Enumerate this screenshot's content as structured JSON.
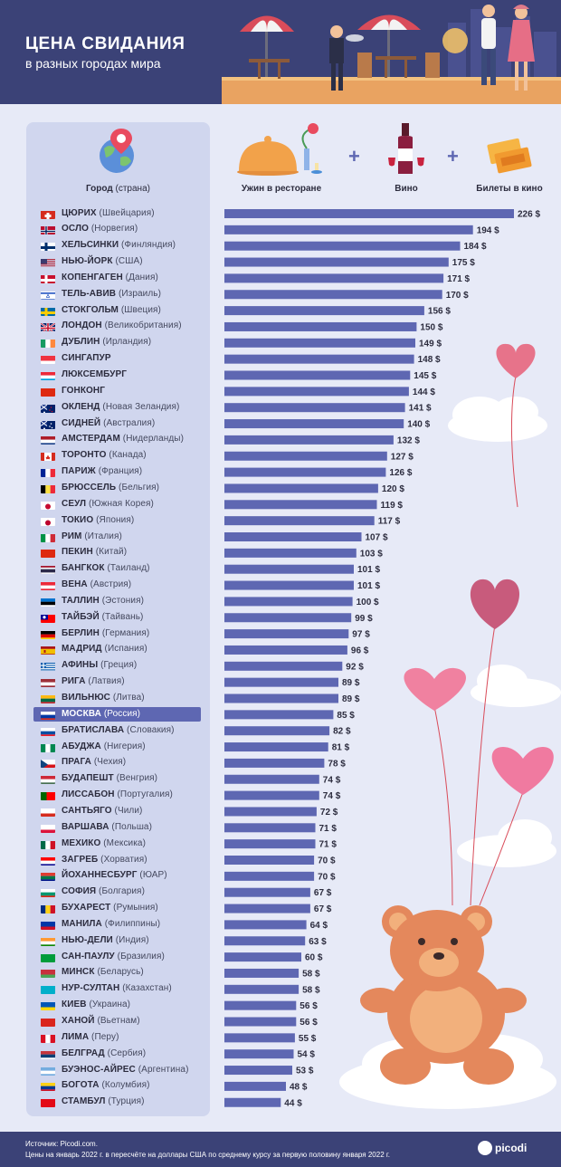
{
  "header": {
    "title": "ЦЕНА СВИДАНИЯ",
    "subtitle": "в разных городах мира"
  },
  "columns": {
    "city_label": "Город",
    "country_label": "(страна)",
    "icon_dinner": "Ужин в ресторане",
    "icon_wine": "Вино",
    "icon_cinema": "Билеты в кино",
    "plus": "+"
  },
  "footer": {
    "source": "Источник: Picodi.com.",
    "note": "Цены на январь 2022 г. в пересчёте на доллары США по среднему курсу за первую половину января 2022 г.",
    "logo": "picodi"
  },
  "colors": {
    "bar": "#5e67b2",
    "header_bg": "#3b4277",
    "highlight": "#5e67b2"
  },
  "chart_data": {
    "type": "bar",
    "orientation": "horizontal",
    "unit": "$",
    "highlighted": "МОСКВА",
    "categories": [
      "ЦЮРИХ",
      "ОСЛО",
      "ХЕЛЬСИНКИ",
      "НЬЮ-ЙОРК",
      "КОПЕНГАГЕН",
      "ТЕЛЬ-АВИВ",
      "СТОКГОЛЬМ",
      "ЛОНДОН",
      "ДУБЛИН",
      "СИНГАПУР",
      "ЛЮКСЕМБУРГ",
      "ГОНКОНГ",
      "ОКЛЕНД",
      "СИДНЕЙ",
      "АМСТЕРДАМ",
      "ТОРОНТО",
      "ПАРИЖ",
      "БРЮССЕЛЬ",
      "СЕУЛ",
      "ТОКИО",
      "РИМ",
      "ПЕКИН",
      "БАНГКОК",
      "ВЕНА",
      "ТАЛЛИН",
      "ТАЙБЭЙ",
      "БЕРЛИН",
      "МАДРИД",
      "АФИНЫ",
      "РИГА",
      "ВИЛЬНЮС",
      "МОСКВА",
      "БРАТИСЛАВА",
      "АБУДЖА",
      "ПРАГА",
      "БУДАПЕШТ",
      "ЛИССАБОН",
      "САНТЬЯГО",
      "ВАРШАВА",
      "МЕХИКО",
      "ЗАГРЕБ",
      "ЙОХАННЕСБУРГ",
      "СОФИЯ",
      "БУХАРЕСТ",
      "МАНИЛА",
      "НЬЮ-ДЕЛИ",
      "САН-ПАУЛУ",
      "МИНСК",
      "НУР-СУЛТАН",
      "КИЕВ",
      "ХАНОЙ",
      "ЛИМА",
      "БЕЛГРАД",
      "БУЭНОС-АЙРЕС",
      "БОГОТА",
      "СТАМБУЛ"
    ],
    "countries": [
      "(Швейцария)",
      "(Норвегия)",
      "(Финляндия)",
      "(США)",
      "(Дания)",
      "(Израиль)",
      "(Швеция)",
      "(Великобритания)",
      "(Ирландия)",
      "",
      "",
      "",
      "(Новая Зеландия)",
      "(Австралия)",
      "(Нидерланды)",
      "(Канада)",
      "(Франция)",
      "(Бельгия)",
      "(Южная Корея)",
      "(Япония)",
      "(Италия)",
      "(Китай)",
      "(Таиланд)",
      "(Австрия)",
      "(Эстония)",
      "(Тайвань)",
      "(Германия)",
      "(Испания)",
      "(Греция)",
      "(Латвия)",
      "(Литва)",
      "(Россия)",
      "(Словакия)",
      "(Нигерия)",
      "(Чехия)",
      "(Венгрия)",
      "(Португалия)",
      "(Чили)",
      "(Польша)",
      "(Мексика)",
      "(Хорватия)",
      "(ЮАР)",
      "(Болгария)",
      "(Румыния)",
      "(Филиппины)",
      "(Индия)",
      "(Бразилия)",
      "(Беларусь)",
      "(Казахстан)",
      "(Украина)",
      "(Вьетнам)",
      "(Перу)",
      "(Сербия)",
      "(Аргентина)",
      "(Колумбия)",
      "(Турция)"
    ],
    "values": [
      226,
      194,
      184,
      175,
      171,
      170,
      156,
      150,
      149,
      148,
      145,
      144,
      141,
      140,
      132,
      127,
      126,
      120,
      119,
      117,
      107,
      103,
      101,
      101,
      100,
      99,
      97,
      96,
      92,
      89,
      89,
      85,
      82,
      81,
      78,
      74,
      74,
      72,
      71,
      71,
      70,
      70,
      67,
      67,
      64,
      63,
      60,
      58,
      58,
      56,
      56,
      55,
      54,
      53,
      48,
      44
    ],
    "value_labels": [
      "226 $",
      "194 $",
      "184 $",
      "175 $",
      "171 $",
      "170 $",
      "156 $",
      "150 $",
      "149 $",
      "148 $",
      "145 $",
      "144 $",
      "141 $",
      "140 $",
      "132 $",
      "127 $",
      "126 $",
      "120 $",
      "119 $",
      "117 $",
      "107 $",
      "103 $",
      "101 $",
      "101 $",
      "100 $",
      "99 $",
      "97 $",
      "96 $",
      "92 $",
      "89 $",
      "89 $",
      "85 $",
      "82 $",
      "81 $",
      "78 $",
      "74 $",
      "74 $",
      "72 $",
      "71 $",
      "71 $",
      "70 $",
      "70 $",
      "67 $",
      "67 $",
      "64 $",
      "63 $",
      "60 $",
      "58 $",
      "58 $",
      "56 $",
      "56 $",
      "55 $",
      "54 $",
      "53 $",
      "48 $",
      "44 $"
    ],
    "flags": [
      {
        "type": "cross",
        "bg": "#d52b1e",
        "fg": "#ffffff"
      },
      {
        "type": "nordic",
        "bg": "#ba0c2f",
        "fg": "#ffffff",
        "inner": "#00205b"
      },
      {
        "type": "nordic",
        "bg": "#ffffff",
        "fg": "#002f6c"
      },
      {
        "type": "usa"
      },
      {
        "type": "nordic",
        "bg": "#c8102e",
        "fg": "#ffffff"
      },
      {
        "type": "israel"
      },
      {
        "type": "nordic",
        "bg": "#006aa7",
        "fg": "#fecc00"
      },
      {
        "type": "uk"
      },
      {
        "type": "v3",
        "c": [
          "#169b62",
          "#ffffff",
          "#ff883e"
        ]
      },
      {
        "type": "h2",
        "c": [
          "#ef3340",
          "#ffffff"
        ]
      },
      {
        "type": "h3",
        "c": [
          "#ed2939",
          "#ffffff",
          "#00a1de"
        ]
      },
      {
        "type": "solid",
        "c": [
          "#de2910"
        ]
      },
      {
        "type": "oz",
        "c": [
          "#012169",
          "#c8102e"
        ]
      },
      {
        "type": "oz",
        "c": [
          "#012169",
          "#ffffff"
        ]
      },
      {
        "type": "h3",
        "c": [
          "#ae1c28",
          "#ffffff",
          "#21468b"
        ]
      },
      {
        "type": "canada"
      },
      {
        "type": "v3",
        "c": [
          "#002395",
          "#ffffff",
          "#ed2939"
        ]
      },
      {
        "type": "v3",
        "c": [
          "#000000",
          "#fae042",
          "#ed2939"
        ]
      },
      {
        "type": "dot",
        "c": [
          "#ffffff",
          "#c60c30"
        ]
      },
      {
        "type": "dot",
        "c": [
          "#ffffff",
          "#bc002d"
        ]
      },
      {
        "type": "v3",
        "c": [
          "#009246",
          "#ffffff",
          "#ce2b37"
        ]
      },
      {
        "type": "solid",
        "c": [
          "#de2910"
        ]
      },
      {
        "type": "thai"
      },
      {
        "type": "h3",
        "c": [
          "#ed2939",
          "#ffffff",
          "#ed2939"
        ]
      },
      {
        "type": "h3",
        "c": [
          "#0072ce",
          "#000000",
          "#ffffff"
        ]
      },
      {
        "type": "taiwan"
      },
      {
        "type": "h3",
        "c": [
          "#000000",
          "#dd0000",
          "#ffce00"
        ]
      },
      {
        "type": "spain"
      },
      {
        "type": "stripes",
        "c": [
          "#0d5eaf",
          "#ffffff"
        ]
      },
      {
        "type": "h3",
        "c": [
          "#9e3039",
          "#ffffff",
          "#9e3039"
        ]
      },
      {
        "type": "h3",
        "c": [
          "#fdb913",
          "#006a44",
          "#c1272d"
        ]
      },
      {
        "type": "h3",
        "c": [
          "#ffffff",
          "#0039a6",
          "#d52b1e"
        ]
      },
      {
        "type": "h3",
        "c": [
          "#ffffff",
          "#0b4ea2",
          "#ee1c25"
        ]
      },
      {
        "type": "v3",
        "c": [
          "#008751",
          "#ffffff",
          "#008751"
        ]
      },
      {
        "type": "czech"
      },
      {
        "type": "h3",
        "c": [
          "#ce2939",
          "#ffffff",
          "#477050"
        ]
      },
      {
        "type": "v2",
        "c": [
          "#006600",
          "#ff0000"
        ]
      },
      {
        "type": "h2",
        "c": [
          "#ffffff",
          "#d52b1e"
        ]
      },
      {
        "type": "h2",
        "c": [
          "#ffffff",
          "#dc143c"
        ]
      },
      {
        "type": "v3",
        "c": [
          "#006847",
          "#ffffff",
          "#ce1126"
        ]
      },
      {
        "type": "h3",
        "c": [
          "#ff0000",
          "#ffffff",
          "#171796"
        ]
      },
      {
        "type": "h3",
        "c": [
          "#e03c31",
          "#007749",
          "#001489"
        ]
      },
      {
        "type": "h3",
        "c": [
          "#ffffff",
          "#00966e",
          "#d62612"
        ]
      },
      {
        "type": "v3",
        "c": [
          "#002b7f",
          "#fcd116",
          "#ce1126"
        ]
      },
      {
        "type": "h2",
        "c": [
          "#0038a8",
          "#ce1126"
        ]
      },
      {
        "type": "h3",
        "c": [
          "#ff9933",
          "#ffffff",
          "#138808"
        ]
      },
      {
        "type": "solid",
        "c": [
          "#009c3b"
        ]
      },
      {
        "type": "h2",
        "c": [
          "#c8313e",
          "#4aa657"
        ]
      },
      {
        "type": "solid",
        "c": [
          "#00afca"
        ]
      },
      {
        "type": "h2",
        "c": [
          "#0057b7",
          "#ffd700"
        ]
      },
      {
        "type": "solid",
        "c": [
          "#da251d"
        ]
      },
      {
        "type": "v3",
        "c": [
          "#d91023",
          "#ffffff",
          "#d91023"
        ]
      },
      {
        "type": "h3",
        "c": [
          "#c6363c",
          "#0c4076",
          "#ffffff"
        ]
      },
      {
        "type": "h3",
        "c": [
          "#74acdf",
          "#ffffff",
          "#74acdf"
        ]
      },
      {
        "type": "h3",
        "c": [
          "#fcd116",
          "#003893",
          "#ce1126"
        ]
      },
      {
        "type": "solid",
        "c": [
          "#e30a17"
        ]
      }
    ],
    "xlim": [
      0,
      226
    ]
  }
}
